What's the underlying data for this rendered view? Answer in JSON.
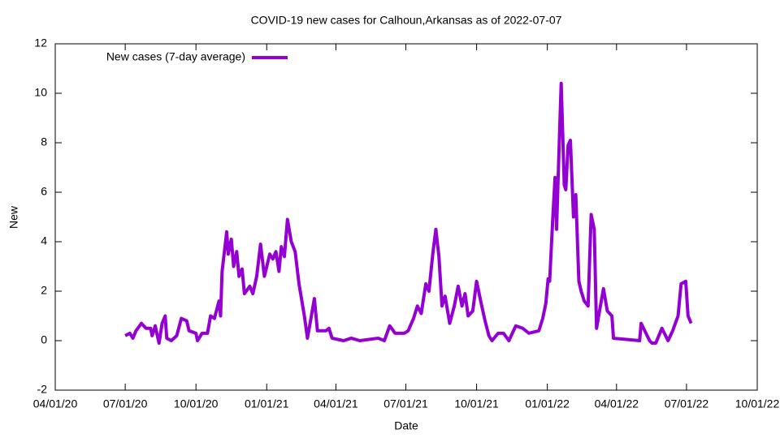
{
  "chart_data": {
    "type": "line",
    "title": "COVID-19 new cases for Calhoun,Arkansas as of 2022-07-07",
    "x_label": "Date",
    "y_label": "New",
    "legend": "top left",
    "grid": false,
    "xlim": [
      "2020-04-01",
      "2022-10-01"
    ],
    "xticks": [
      {
        "value": "2020-04-01",
        "label": "04/01/20"
      },
      {
        "value": "2020-07-01",
        "label": "07/01/20"
      },
      {
        "value": "2020-10-01",
        "label": "10/01/20"
      },
      {
        "value": "2021-01-01",
        "label": "01/01/21"
      },
      {
        "value": "2021-04-01",
        "label": "04/01/21"
      },
      {
        "value": "2021-07-01",
        "label": "07/01/21"
      },
      {
        "value": "2021-10-01",
        "label": "10/01/21"
      },
      {
        "value": "2022-01-01",
        "label": "01/01/22"
      },
      {
        "value": "2022-04-01",
        "label": "04/01/22"
      },
      {
        "value": "2022-07-01",
        "label": "07/01/22"
      },
      {
        "value": "2022-10-01",
        "label": "10/01/22"
      }
    ],
    "ylim": [
      -2,
      12
    ],
    "yticks": [
      -2,
      0,
      2,
      4,
      6,
      8,
      10,
      12
    ],
    "x": [
      "2020-07-01",
      "2020-07-07",
      "2020-07-11",
      "2020-07-15",
      "2020-07-22",
      "2020-07-28",
      "2020-08-03",
      "2020-08-05",
      "2020-08-09",
      "2020-08-14",
      "2020-08-18",
      "2020-08-22",
      "2020-08-24",
      "2020-08-30",
      "2020-09-06",
      "2020-09-12",
      "2020-09-19",
      "2020-09-22",
      "2020-10-01",
      "2020-10-03",
      "2020-10-09",
      "2020-10-16",
      "2020-10-20",
      "2020-10-25",
      "2020-10-31",
      "2020-11-02",
      "2020-11-04",
      "2020-11-10",
      "2020-11-12",
      "2020-11-16",
      "2020-11-19",
      "2020-11-23",
      "2020-11-26",
      "2020-11-30",
      "2020-12-03",
      "2020-12-10",
      "2020-12-14",
      "2020-12-19",
      "2020-12-24",
      "2020-12-29",
      "2021-01-05",
      "2021-01-09",
      "2021-01-13",
      "2021-01-17",
      "2021-01-20",
      "2021-01-24",
      "2021-01-28",
      "2021-02-02",
      "2021-02-07",
      "2021-02-12",
      "2021-02-19",
      "2021-02-23",
      "2021-02-27",
      "2021-03-04",
      "2021-03-08",
      "2021-03-19",
      "2021-03-23",
      "2021-03-27",
      "2021-04-11",
      "2021-04-21",
      "2021-05-02",
      "2021-05-26",
      "2021-06-03",
      "2021-06-10",
      "2021-06-17",
      "2021-06-29",
      "2021-07-04",
      "2021-07-11",
      "2021-07-16",
      "2021-07-21",
      "2021-07-27",
      "2021-07-31",
      "2021-08-05",
      "2021-08-09",
      "2021-08-13",
      "2021-08-17",
      "2021-08-21",
      "2021-08-27",
      "2021-09-02",
      "2021-09-07",
      "2021-09-12",
      "2021-09-16",
      "2021-09-20",
      "2021-09-26",
      "2021-10-01",
      "2021-10-07",
      "2021-10-12",
      "2021-10-17",
      "2021-10-21",
      "2021-10-29",
      "2021-11-05",
      "2021-11-12",
      "2021-11-21",
      "2021-11-30",
      "2021-12-08",
      "2021-12-21",
      "2021-12-26",
      "2021-12-30",
      "2022-01-02",
      "2022-01-04",
      "2022-01-08",
      "2022-01-11",
      "2022-01-13",
      "2022-01-17",
      "2022-01-19",
      "2022-01-23",
      "2022-01-25",
      "2022-01-28",
      "2022-01-31",
      "2022-02-04",
      "2022-02-07",
      "2022-02-11",
      "2022-02-14",
      "2022-02-18",
      "2022-02-23",
      "2022-02-27",
      "2022-03-03",
      "2022-03-06",
      "2022-03-11",
      "2022-03-15",
      "2022-03-20",
      "2022-03-26",
      "2022-03-28",
      "2022-05-01",
      "2022-05-03",
      "2022-05-14",
      "2022-05-17",
      "2022-05-22",
      "2022-05-30",
      "2022-06-07",
      "2022-06-13",
      "2022-06-20",
      "2022-06-24",
      "2022-06-30",
      "2022-07-03",
      "2022-07-07"
    ],
    "series": [
      {
        "name": "New cases (7-day average)",
        "color": "#9400d3",
        "values": [
          0.2,
          0.3,
          0.1,
          0.4,
          0.7,
          0.5,
          0.5,
          0.2,
          0.6,
          -0.1,
          0.7,
          1.0,
          0.1,
          0.0,
          0.2,
          0.9,
          0.8,
          0.4,
          0.3,
          0.0,
          0.3,
          0.3,
          1.0,
          0.9,
          1.6,
          1.0,
          2.8,
          4.4,
          3.5,
          4.1,
          3.0,
          3.6,
          2.6,
          2.9,
          1.9,
          2.2,
          1.9,
          2.6,
          3.9,
          2.6,
          3.5,
          3.3,
          3.6,
          2.8,
          3.8,
          3.4,
          4.9,
          4.0,
          3.6,
          2.3,
          1.0,
          0.1,
          0.8,
          1.7,
          0.4,
          0.4,
          0.5,
          0.1,
          0.0,
          0.1,
          0.0,
          0.1,
          0.0,
          0.6,
          0.3,
          0.3,
          0.4,
          0.9,
          1.4,
          1.1,
          2.3,
          2.0,
          3.5,
          4.5,
          3.4,
          1.4,
          1.8,
          0.7,
          1.4,
          2.2,
          1.4,
          1.9,
          1.0,
          1.2,
          2.4,
          1.5,
          0.8,
          0.2,
          0.0,
          0.3,
          0.3,
          0.0,
          0.6,
          0.5,
          0.3,
          0.4,
          0.9,
          1.5,
          2.5,
          2.4,
          4.9,
          6.6,
          4.5,
          8.5,
          10.4,
          6.3,
          6.1,
          7.9,
          8.1,
          5.0,
          5.9,
          2.4,
          2.0,
          1.6,
          1.4,
          5.1,
          4.5,
          0.5,
          1.4,
          2.1,
          1.2,
          1.0,
          0.1,
          0.0,
          0.7,
          0.0,
          -0.1,
          -0.1,
          0.5,
          0.0,
          0.4,
          1.0,
          2.3,
          2.4,
          1.0,
          0.7
        ]
      }
    ]
  }
}
